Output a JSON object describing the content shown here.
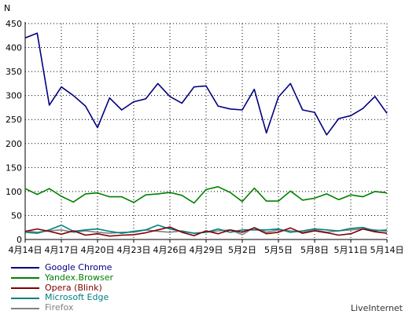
{
  "chart_data": {
    "type": "line",
    "ylabel": "N",
    "ylim": [
      0,
      450
    ],
    "yticks": [
      0,
      50,
      100,
      150,
      200,
      250,
      300,
      350,
      400,
      450
    ],
    "x": [
      "4月14日",
      "4月15日",
      "4月16日",
      "4月17日",
      "4月18日",
      "4月19日",
      "4月20日",
      "4月21日",
      "4月22日",
      "4月23日",
      "4月24日",
      "4月25日",
      "4月26日",
      "4月27日",
      "4月28日",
      "4月29日",
      "4月30日",
      "5月1日",
      "5月2日",
      "5月3日",
      "5月4日",
      "5月5日",
      "5月6日",
      "5月7日",
      "5月8日",
      "5月9日",
      "5月10日",
      "5月11日",
      "5月12日",
      "5月13日",
      "5月14日"
    ],
    "xtick_labels": [
      "4月14日",
      "4月17日",
      "4月20日",
      "4月23日",
      "4月26日",
      "4月29日",
      "5月2日",
      "5月5日",
      "5月8日",
      "5月11日",
      "5月14日"
    ],
    "grid": true,
    "legend_position": "bottom-left",
    "series": [
      {
        "name": "Google Chrome",
        "color": "#000080",
        "values": [
          420,
          430,
          280,
          318,
          300,
          278,
          233,
          295,
          270,
          287,
          293,
          325,
          298,
          284,
          318,
          320,
          278,
          272,
          270,
          313,
          222,
          297,
          325,
          270,
          265,
          218,
          252,
          258,
          273,
          298,
          263
        ]
      },
      {
        "name": "Yandex.Browser",
        "color": "#008000",
        "values": [
          106,
          94,
          106,
          90,
          78,
          95,
          97,
          89,
          89,
          77,
          93,
          95,
          98,
          92,
          76,
          104,
          110,
          98,
          79,
          107,
          80,
          80,
          101,
          82,
          86,
          95,
          83,
          93,
          89,
          100,
          97
        ]
      },
      {
        "name": "Opera (Blink)",
        "color": "#800000",
        "values": [
          17,
          22,
          17,
          11,
          18,
          9,
          12,
          7,
          9,
          10,
          14,
          20,
          26,
          15,
          8,
          18,
          12,
          20,
          15,
          24,
          12,
          15,
          24,
          13,
          18,
          14,
          9,
          12,
          22,
          16,
          13
        ]
      },
      {
        "name": "Microsoft Edge",
        "color": "#008080",
        "values": [
          15,
          13,
          20,
          30,
          17,
          20,
          22,
          17,
          13,
          17,
          20,
          30,
          22,
          17,
          13,
          15,
          22,
          15,
          20,
          20,
          20,
          22,
          15,
          18,
          22,
          20,
          18,
          23,
          25,
          18,
          20
        ]
      },
      {
        "name": "Firefox",
        "color": "#808080",
        "values": [
          18,
          15,
          18,
          20,
          15,
          18,
          15,
          13,
          15,
          15,
          20,
          17,
          15,
          18,
          13,
          15,
          18,
          20,
          10,
          25,
          15,
          20,
          18,
          15,
          20,
          15,
          18,
          20,
          22,
          20,
          17
        ]
      }
    ]
  },
  "credit": "LiveInternet"
}
